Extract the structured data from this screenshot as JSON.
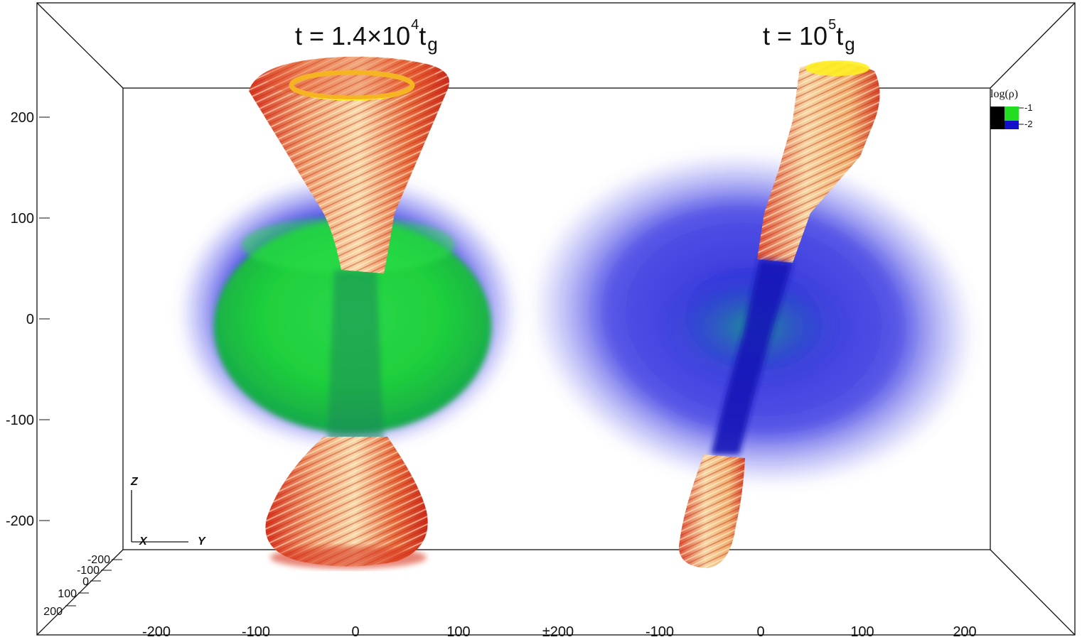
{
  "titles": {
    "left": {
      "prefix": "t = 1.4×10",
      "exp": "4",
      "unit": "t",
      "sub": "g"
    },
    "right": {
      "prefix": "t = 10",
      "exp": "5",
      "unit": "t",
      "sub": "g"
    }
  },
  "axes": {
    "z_ticks": [
      "200",
      "100",
      "0",
      "-100",
      "-200"
    ],
    "bottom_ticks_left": [
      "-200",
      "-100",
      "0",
      "100"
    ],
    "bottom_center_tick": "±200",
    "bottom_ticks_right": [
      "-100",
      "0",
      "100",
      "200"
    ],
    "depth_ticks": [
      "-200",
      "-100",
      "0",
      "100",
      "200"
    ],
    "triad": {
      "z": "Z",
      "x": "X",
      "y": "Y"
    }
  },
  "legend": {
    "title": "log(ρ)",
    "entries": [
      {
        "label": "-1",
        "color": "#22dd22"
      },
      {
        "label": "-2",
        "color": "#1111cc"
      }
    ]
  },
  "colors": {
    "torus_high_density": "#22dd22",
    "envelope_low_density": "#2222dd",
    "jet_outer": "#e03a20",
    "jet_inner": "#f5c98a",
    "jet_rim": "#ffee22"
  }
}
